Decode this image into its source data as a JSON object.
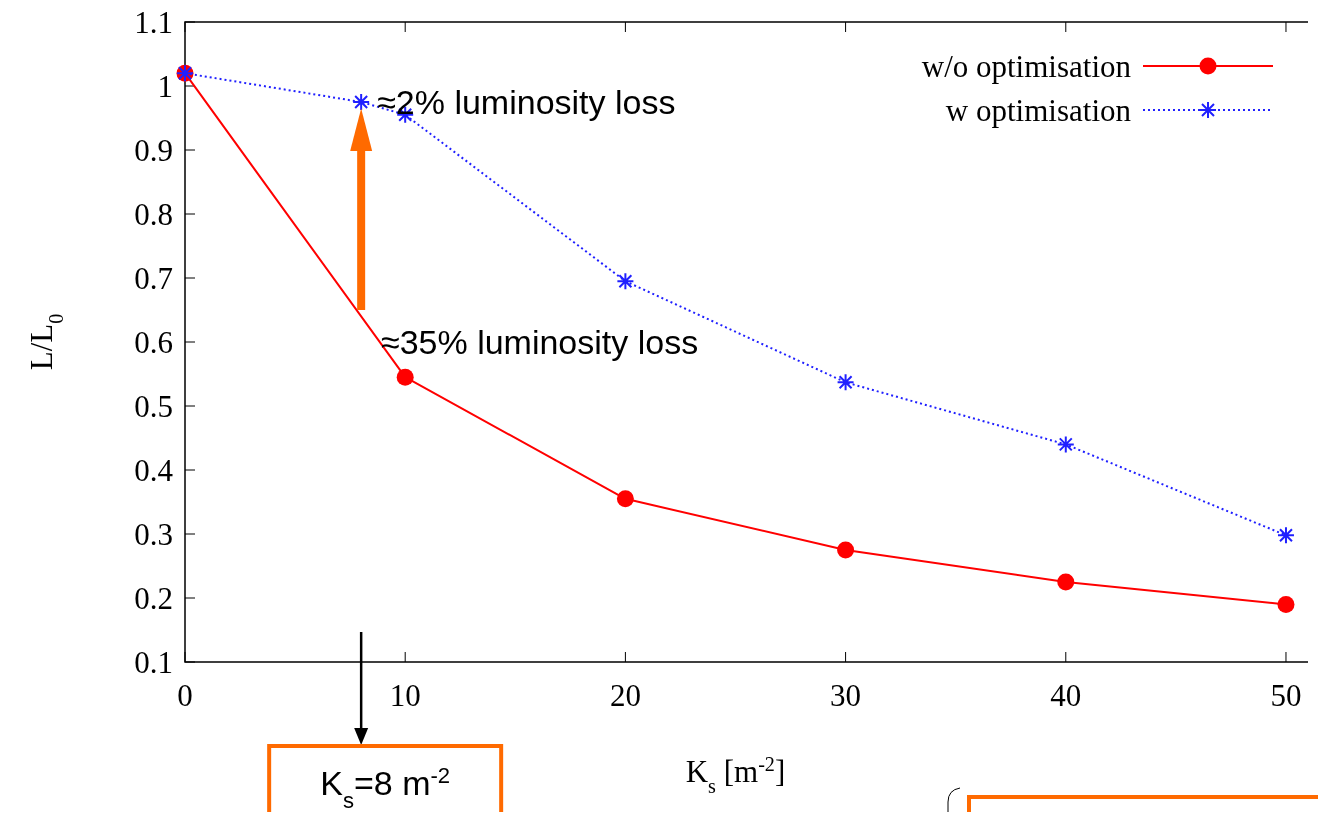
{
  "chart_data": {
    "type": "line",
    "xlabel": "K$_{s}$ [m$^{-2}$]",
    "ylabel": "L/L$_{0}$",
    "xlim": [
      0,
      51
    ],
    "ylim": [
      0.1,
      1.1
    ],
    "xticks": [
      0,
      10,
      20,
      30,
      40,
      50
    ],
    "yticks": [
      0.1,
      0.2,
      0.3,
      0.4,
      0.5,
      0.6,
      0.7,
      0.8,
      0.9,
      1,
      1.1
    ],
    "grid": false,
    "legend": "top right",
    "series": [
      {
        "name": "w/o optimisation",
        "color": "#ff0000",
        "marker": "circle",
        "line_style": "solid",
        "x": [
          0,
          10,
          20,
          30,
          40,
          50
        ],
        "values": [
          1.02,
          0.545,
          0.355,
          0.275,
          0.225,
          0.19
        ]
      },
      {
        "name": "w optimisation",
        "color": "#2020ff",
        "marker": "cross",
        "line_style": "dotted",
        "x": [
          0,
          8,
          10,
          20,
          30,
          40,
          50
        ],
        "values": [
          1.02,
          0.975,
          0.955,
          0.695,
          0.537,
          0.44,
          0.298
        ]
      }
    ],
    "annotations": [
      {
        "text": "≈2% luminosity loss",
        "x": 8,
        "y": 0.975
      },
      {
        "text": "≈35% luminosity loss",
        "x": 8.9,
        "y": 0.6
      },
      "K$_{s}$=8 m$^{-2}$"
    ]
  }
}
